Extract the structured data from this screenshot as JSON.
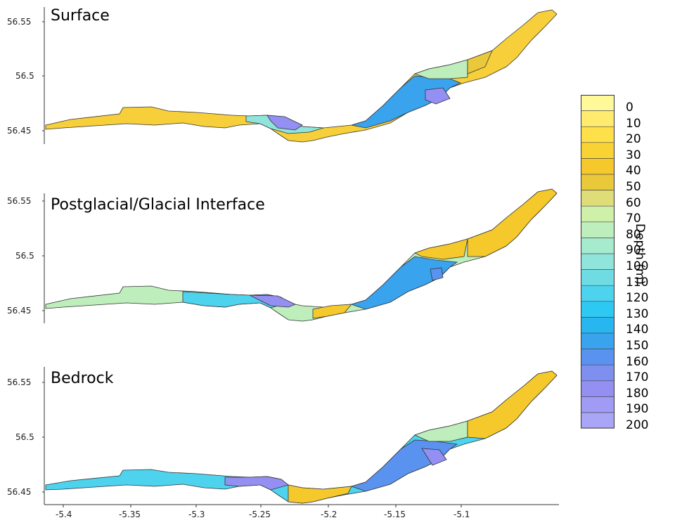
{
  "panels": [
    {
      "title": "Surface",
      "y_ticks": [
        "56.55",
        "56.5",
        "56.45"
      ]
    },
    {
      "title": "Postglacial/Glacial Interface",
      "y_ticks": [
        "56.55",
        "56.5",
        "56.45"
      ]
    },
    {
      "title": "Bedrock",
      "y_ticks": [
        "56.55",
        "56.5",
        "56.45"
      ]
    }
  ],
  "x_ticks": [
    "-5.4",
    "-5.35",
    "-5.3",
    "-5.25",
    "-5.2",
    "-5.15",
    "-5.1"
  ],
  "legend": {
    "title": "Depth (m)",
    "labels": [
      "0",
      "10",
      "20",
      "30",
      "40",
      "50",
      "60",
      "70",
      "80",
      "90",
      "100",
      "110",
      "120",
      "130",
      "140",
      "150",
      "160",
      "170",
      "180",
      "190",
      "200"
    ],
    "colors": [
      "#fff99a",
      "#ffec6e",
      "#fde04a",
      "#f9d334",
      "#f5c92b",
      "#e9c83a",
      "#dedd78",
      "#cff0a8",
      "#bdeebc",
      "#a7ebcf",
      "#8fe5db",
      "#6fdce4",
      "#4dd3ee",
      "#2ec9f3",
      "#28b6f0",
      "#3aa3ee",
      "#5a93ef",
      "#7f8ff0",
      "#948ff2",
      "#a09cf5",
      "#a9a6f7"
    ]
  }
}
